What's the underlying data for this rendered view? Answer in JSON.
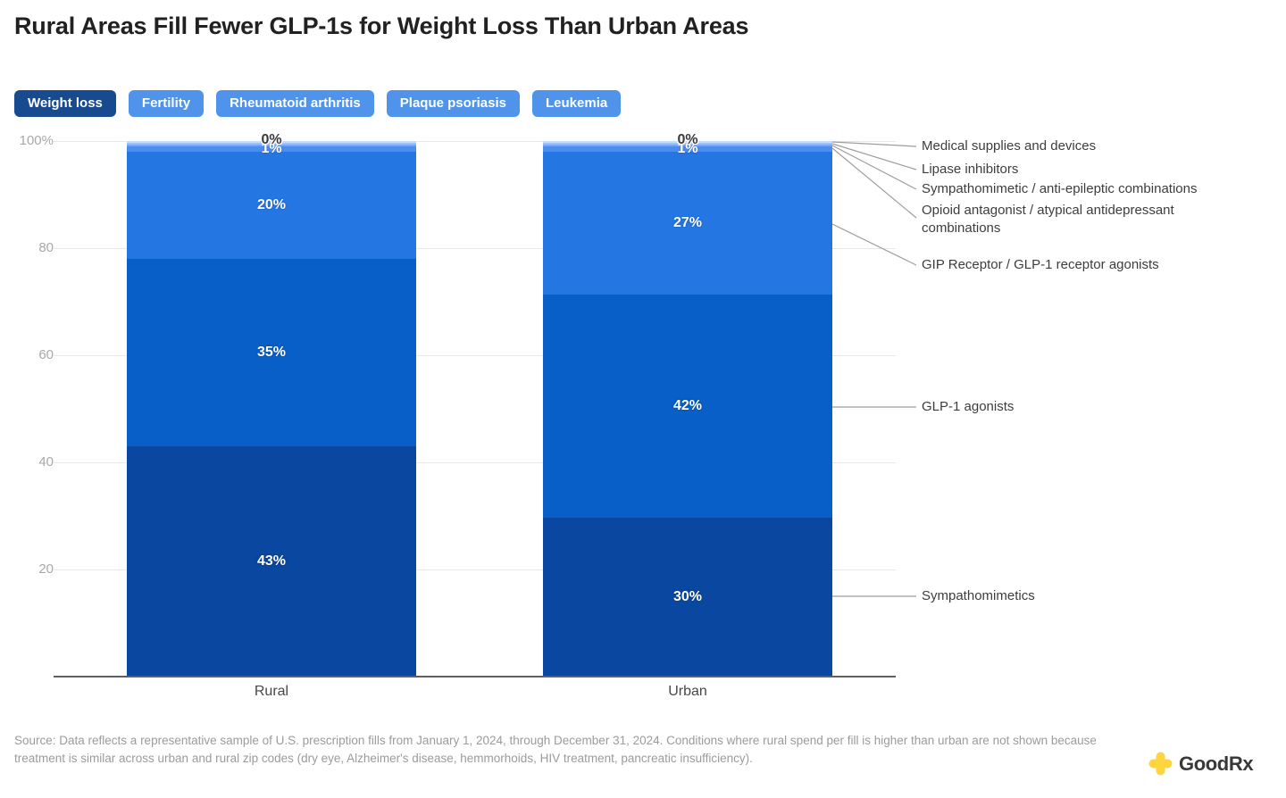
{
  "title": "Rural Areas Fill Fewer GLP-1s for Weight Loss Than Urban Areas",
  "tabs": [
    {
      "label": "Weight loss",
      "active": true
    },
    {
      "label": "Fertility",
      "active": false
    },
    {
      "label": "Rheumatoid arthritis",
      "active": false
    },
    {
      "label": "Plaque psoriasis",
      "active": false
    },
    {
      "label": "Leukemia",
      "active": false
    }
  ],
  "tab_colors": {
    "active_bg": "#174a8e",
    "inactive_bg": "#4f94ea",
    "text": "#ffffff"
  },
  "chart_data": {
    "type": "bar",
    "stacked": true,
    "categories": [
      "Rural",
      "Urban"
    ],
    "series": [
      {
        "name": "Sympathomimetics",
        "color": "#0a47a0",
        "values": [
          43,
          30
        ]
      },
      {
        "name": "GLP-1 agonists",
        "color": "#075fc7",
        "values": [
          35,
          42
        ]
      },
      {
        "name": "GIP Receptor / GLP-1 receptor agonists",
        "color": "#2476e3",
        "values": [
          20,
          27
        ]
      },
      {
        "name": "Opioid antagonist / atypical antidepressant combinations",
        "color": "#4e8cef",
        "values": [
          1,
          1
        ]
      },
      {
        "name": "Sympathomimetic / anti-epileptic combinations",
        "color": "#77a7f3",
        "values": [
          0,
          0
        ]
      },
      {
        "name": "Lipase inhibitors",
        "color": "#9fc2f7",
        "values": [
          0,
          0
        ]
      },
      {
        "name": "Medical supplies and devices",
        "color": "#c9ddfa",
        "values": [
          0,
          0
        ]
      }
    ],
    "ylim": [
      0,
      100
    ],
    "ytick_labels": [
      "100%",
      "80",
      "60",
      "40",
      "20"
    ],
    "grid": true,
    "legend_position": "right-annotations",
    "value_label_format": "percent"
  },
  "annotations": [
    {
      "label": "Medical supplies and devices"
    },
    {
      "label": "Lipase inhibitors"
    },
    {
      "label": "Sympathomimetic / anti-epileptic combinations"
    },
    {
      "label": "Opioid antagonist / atypical antidepressant combinations"
    },
    {
      "label": "GIP Receptor / GLP-1 receptor agonists"
    },
    {
      "label": "GLP-1 agonists"
    },
    {
      "label": "Sympathomimetics"
    }
  ],
  "source": "Source: Data reflects a representative sample of U.S. prescription fills from January 1, 2024, through December 31, 2024. Conditions where rural spend per fill is higher than urban are not shown because treatment is similar across urban and rural zip codes (dry eye, Alzheimer's disease, hemmorhoids, HIV treatment, pancreatic insufficiency).",
  "logo": {
    "text": "GoodRx",
    "icon": "goodrx-plus-icon",
    "icon_color": "#ffd53d",
    "text_color": "#383838"
  }
}
